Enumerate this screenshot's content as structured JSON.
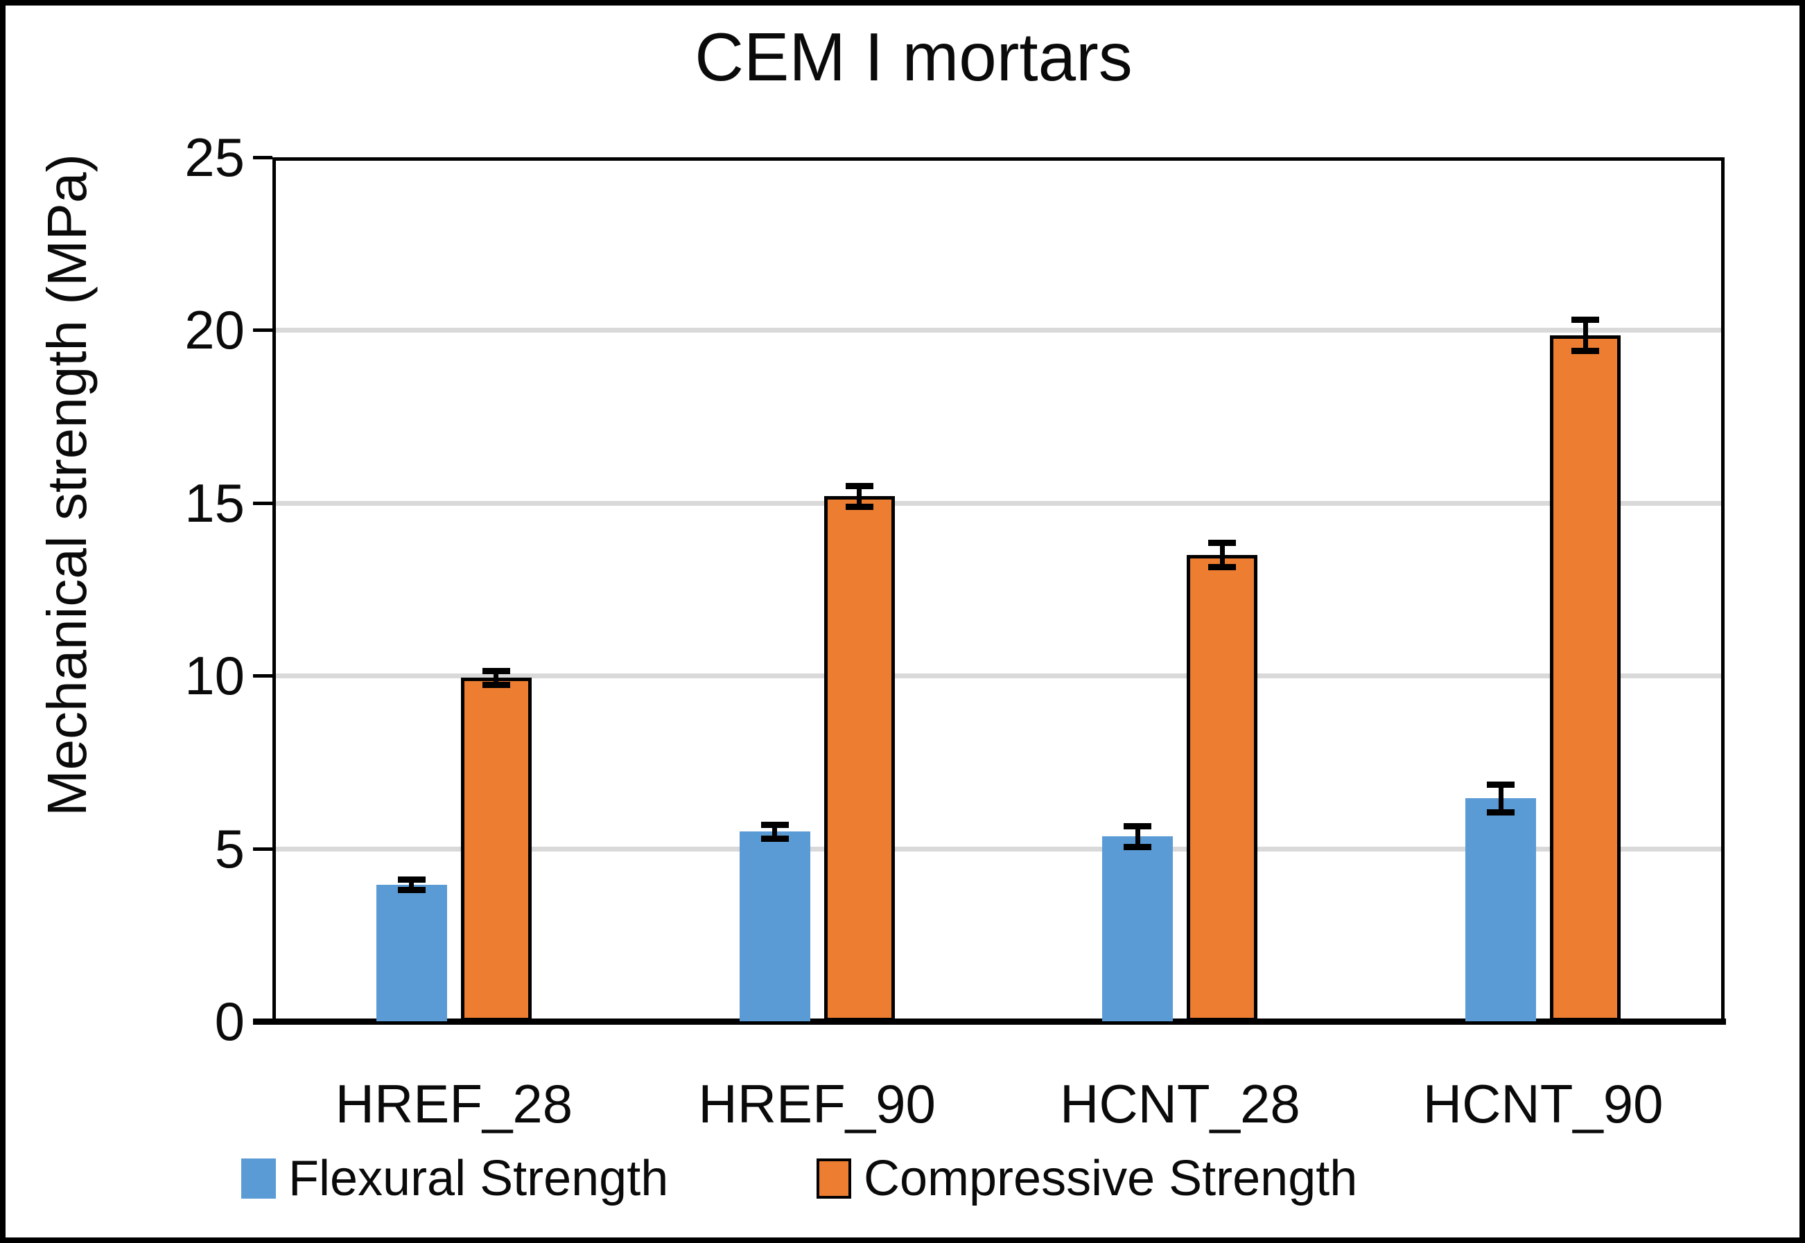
{
  "title": "CEM I mortars",
  "y_axis_title": "Mechanical strength (MPa)",
  "chart_data": {
    "type": "bar",
    "title": "CEM I mortars",
    "xlabel": "",
    "ylabel": "Mechanical strength (MPa)",
    "ylim": [
      0,
      25
    ],
    "y_tick_step": 5,
    "y_tick_labels": [
      "0",
      "5",
      "10",
      "15",
      "20",
      "25"
    ],
    "grid": true,
    "gridline_color": "#d9d9d9",
    "legend_position": "bottom",
    "categories": [
      "HREF_28",
      "HREF_90",
      "HCNT_28",
      "HCNT_90"
    ],
    "series": [
      {
        "name": "Flexural Strength",
        "color": "#5b9bd5",
        "outlined": false,
        "values": [
          3.95,
          5.5,
          5.35,
          6.45
        ],
        "errors": [
          0.15,
          0.2,
          0.3,
          0.4
        ]
      },
      {
        "name": "Compressive Strength",
        "color": "#ed7d31",
        "outlined": true,
        "values": [
          9.95,
          15.2,
          13.5,
          19.85
        ],
        "errors": [
          0.2,
          0.3,
          0.35,
          0.45
        ]
      }
    ],
    "error_bar_color": "#000000",
    "axis_color": "#000000"
  }
}
